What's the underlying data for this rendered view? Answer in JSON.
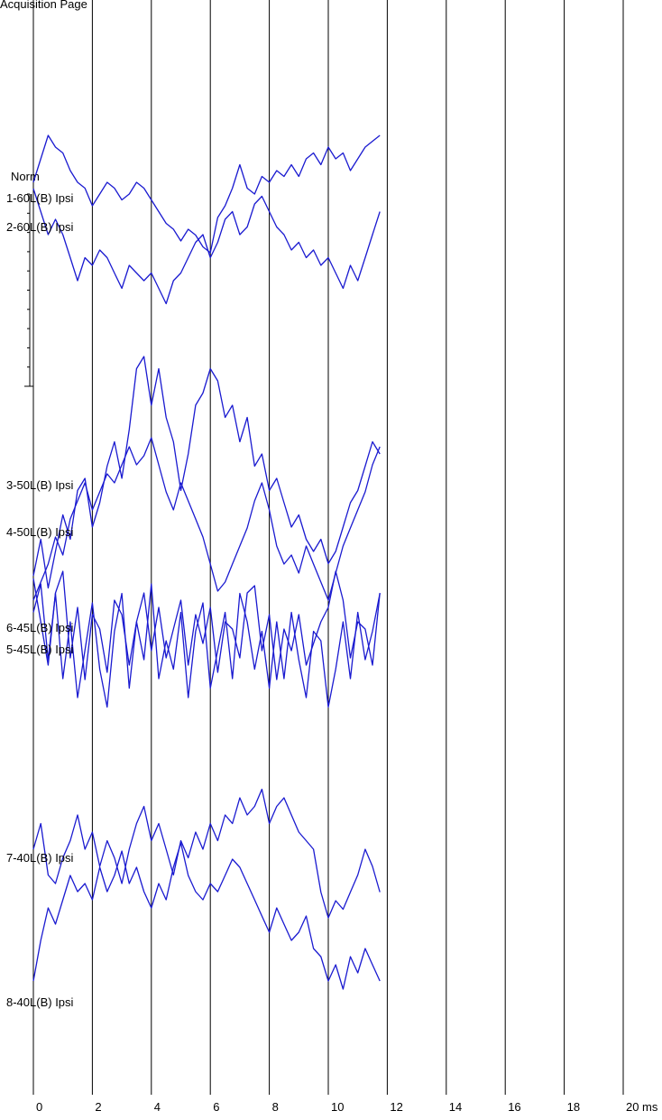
{
  "page_title": "Acquisition Page",
  "chart_data": {
    "type": "line",
    "title": "Acquisition Page",
    "xlabel": "",
    "x_unit": "ms",
    "xlim": [
      0,
      20
    ],
    "x_ticks": [
      0,
      2,
      4,
      6,
      8,
      10,
      12,
      14,
      16,
      18,
      20
    ],
    "grid": "vertical",
    "scale_label": "Norm",
    "series_color": "#1a1ad0",
    "series": [
      {
        "name": "1-60L(B) Ipsi",
        "x": [
          0,
          0.25,
          0.5,
          0.75,
          1,
          1.25,
          1.5,
          1.75,
          2,
          2.25,
          2.5,
          2.75,
          3,
          3.25,
          3.5,
          3.75,
          4,
          4.25,
          4.5,
          4.75,
          5,
          5.25,
          5.5,
          5.75,
          6,
          6.25,
          6.5,
          6.75,
          7,
          7.25,
          7.5,
          7.75,
          8,
          8.25,
          8.5,
          8.75,
          9,
          9.25,
          9.5,
          9.75,
          10,
          10.25,
          10.5,
          10.75,
          11,
          11.25,
          11.5,
          11.75
        ],
        "y": [
          0.2,
          0.6,
          1.0,
          0.8,
          0.7,
          0.4,
          0.2,
          0.1,
          -0.2,
          0.0,
          0.2,
          0.1,
          -0.1,
          0.0,
          0.2,
          0.1,
          -0.1,
          -0.3,
          -0.5,
          -0.6,
          -0.8,
          -0.6,
          -0.7,
          -0.9,
          -1.0,
          -0.4,
          -0.2,
          0.1,
          0.5,
          0.1,
          0.0,
          0.3,
          0.2,
          0.4,
          0.3,
          0.5,
          0.3,
          0.6,
          0.7,
          0.5,
          0.8,
          0.6,
          0.7,
          0.4,
          0.6,
          0.8,
          0.9,
          1.0
        ]
      },
      {
        "name": "2-60L(B) Ipsi",
        "x": [
          0,
          0.25,
          0.5,
          0.75,
          1,
          1.25,
          1.5,
          1.75,
          2,
          2.25,
          2.5,
          2.75,
          3,
          3.25,
          3.5,
          3.75,
          4,
          4.25,
          4.5,
          4.75,
          5,
          5.25,
          5.5,
          5.75,
          6,
          6.25,
          6.5,
          6.75,
          7,
          7.25,
          7.5,
          7.75,
          8,
          8.25,
          8.5,
          8.75,
          9,
          9.25,
          9.5,
          9.75,
          10,
          10.25,
          10.5,
          10.75,
          11,
          11.25,
          11.5,
          11.75
        ],
        "y": [
          0.6,
          0.3,
          0.0,
          0.2,
          0.0,
          -0.3,
          -0.6,
          -0.3,
          -0.4,
          -0.2,
          -0.3,
          -0.5,
          -0.7,
          -0.4,
          -0.5,
          -0.6,
          -0.5,
          -0.7,
          -0.9,
          -0.6,
          -0.5,
          -0.3,
          -0.1,
          0.0,
          -0.3,
          -0.1,
          0.2,
          0.3,
          0.0,
          0.1,
          0.4,
          0.5,
          0.3,
          0.1,
          0.0,
          -0.2,
          -0.1,
          -0.3,
          -0.2,
          -0.4,
          -0.3,
          -0.5,
          -0.7,
          -0.4,
          -0.6,
          -0.3,
          0.0,
          0.3
        ]
      },
      {
        "name": "3-50L(B) Ipsi",
        "x": [
          0,
          0.25,
          0.5,
          0.75,
          1,
          1.25,
          1.5,
          1.75,
          2,
          2.25,
          2.5,
          2.75,
          3,
          3.25,
          3.5,
          3.75,
          4,
          4.25,
          4.5,
          4.75,
          5,
          5.25,
          5.5,
          5.75,
          6,
          6.25,
          6.5,
          6.75,
          7,
          7.25,
          7.5,
          7.75,
          8,
          8.25,
          8.5,
          8.75,
          9,
          9.25,
          9.5,
          9.75,
          10,
          10.25,
          10.5,
          10.75,
          11,
          11.25,
          11.5,
          11.75
        ],
        "y": [
          -0.8,
          -0.5,
          -0.9,
          -0.6,
          -0.3,
          -0.5,
          -0.1,
          0.0,
          -0.4,
          -0.2,
          0.1,
          0.3,
          0.0,
          0.4,
          0.9,
          1.0,
          0.6,
          0.9,
          0.5,
          0.3,
          -0.1,
          0.2,
          0.6,
          0.7,
          0.9,
          0.8,
          0.5,
          0.6,
          0.3,
          0.5,
          0.1,
          0.2,
          -0.1,
          0.0,
          -0.2,
          -0.4,
          -0.3,
          -0.5,
          -0.6,
          -0.5,
          -0.7,
          -0.6,
          -0.4,
          -0.2,
          -0.1,
          0.1,
          0.3,
          0.2
        ]
      },
      {
        "name": "4-50L(B) Ipsi",
        "x": [
          0,
          0.25,
          0.5,
          0.75,
          1,
          1.25,
          1.5,
          1.75,
          2,
          2.25,
          2.5,
          2.75,
          3,
          3.25,
          3.5,
          3.75,
          4,
          4.25,
          4.5,
          4.75,
          5,
          5.25,
          5.5,
          5.75,
          6,
          6.25,
          6.5,
          6.75,
          7,
          7.25,
          7.5,
          7.75,
          8,
          8.25,
          8.5,
          8.75,
          9,
          9.25,
          9.5,
          9.75,
          10,
          10.25,
          10.5,
          10.75,
          11,
          11.25,
          11.5,
          11.75
        ],
        "y": [
          -0.9,
          -0.7,
          -0.5,
          -0.2,
          -0.4,
          0.0,
          0.2,
          0.4,
          0.1,
          0.3,
          0.5,
          0.4,
          0.6,
          0.8,
          0.6,
          0.7,
          0.9,
          0.6,
          0.3,
          0.1,
          0.4,
          0.2,
          0.0,
          -0.2,
          -0.5,
          -0.8,
          -0.7,
          -0.5,
          -0.3,
          -0.1,
          0.2,
          0.4,
          0.1,
          -0.3,
          -0.5,
          -0.4,
          -0.6,
          -0.3,
          -0.5,
          -0.7,
          -0.9,
          -0.6,
          -0.3,
          -0.1,
          0.1,
          0.3,
          0.6,
          0.8
        ]
      },
      {
        "name": "5-45L(B) Ipsi",
        "x": [
          0,
          0.25,
          0.5,
          0.75,
          1,
          1.25,
          1.5,
          1.75,
          2,
          2.25,
          2.5,
          2.75,
          3,
          3.25,
          3.5,
          3.75,
          4,
          4.25,
          4.5,
          4.75,
          5,
          5.25,
          5.5,
          5.75,
          6,
          6.25,
          6.5,
          6.75,
          7,
          7.25,
          7.5,
          7.75,
          8,
          8.25,
          8.5,
          8.75,
          9,
          9.25,
          9.5,
          9.75,
          10,
          10.25,
          10.5,
          10.75,
          11,
          11.25,
          11.5,
          11.75
        ],
        "y": [
          0.8,
          0.2,
          -0.4,
          0.6,
          0.9,
          -0.3,
          0.4,
          -0.6,
          0.3,
          0.1,
          -0.5,
          0.5,
          0.3,
          -0.4,
          0.2,
          0.6,
          -0.2,
          0.4,
          -0.3,
          0.1,
          0.5,
          -0.4,
          0.3,
          -0.1,
          0.4,
          -0.5,
          0.2,
          0.1,
          -0.3,
          0.6,
          0.7,
          -0.2,
          0.3,
          -0.6,
          0.1,
          -0.2,
          0.3,
          -0.4,
          -0.1,
          0.2,
          0.4,
          0.9,
          0.5,
          -0.3,
          0.2,
          0.1,
          -0.4,
          0.6
        ]
      },
      {
        "name": "6-45L(B) Ipsi",
        "x": [
          0,
          0.25,
          0.5,
          0.75,
          1,
          1.25,
          1.5,
          1.75,
          2,
          2.25,
          2.5,
          2.75,
          3,
          3.25,
          3.5,
          3.75,
          4,
          4.25,
          4.5,
          4.75,
          5,
          5.25,
          5.5,
          5.75,
          6,
          6.25,
          6.5,
          6.75,
          7,
          7.25,
          7.5,
          7.75,
          8,
          8.25,
          8.5,
          8.75,
          9,
          9.25,
          9.5,
          9.75,
          10,
          10.25,
          10.5,
          10.75,
          11,
          11.25,
          11.5,
          11.75
        ],
        "y": [
          0.3,
          0.6,
          -0.2,
          0.5,
          -0.4,
          0.2,
          -0.6,
          -0.1,
          0.4,
          -0.3,
          -0.7,
          0.1,
          0.5,
          -0.5,
          0.2,
          -0.2,
          0.6,
          -0.4,
          0.0,
          -0.3,
          0.3,
          -0.6,
          0.1,
          0.4,
          -0.5,
          -0.1,
          0.3,
          -0.4,
          0.5,
          0.2,
          -0.3,
          0.1,
          -0.5,
          0.2,
          -0.4,
          0.3,
          -0.2,
          -0.6,
          0.1,
          0.0,
          -0.7,
          -0.3,
          0.2,
          -0.4,
          0.3,
          -0.2,
          0.1,
          0.5
        ]
      },
      {
        "name": "7-40L(B) Ipsi",
        "x": [
          0,
          0.25,
          0.5,
          0.75,
          1,
          1.25,
          1.5,
          1.75,
          2,
          2.25,
          2.5,
          2.75,
          3,
          3.25,
          3.5,
          3.75,
          4,
          4.25,
          4.5,
          4.75,
          5,
          5.25,
          5.5,
          5.75,
          6,
          6.25,
          6.5,
          6.75,
          7,
          7.25,
          7.5,
          7.75,
          8,
          8.25,
          8.5,
          8.75,
          9,
          9.25,
          9.5,
          9.75,
          10,
          10.25,
          10.5,
          10.75,
          11,
          11.25,
          11.5,
          11.75
        ],
        "y": [
          0.2,
          0.5,
          -0.1,
          -0.2,
          0.1,
          0.3,
          0.6,
          0.2,
          0.4,
          0.0,
          0.3,
          0.1,
          -0.2,
          0.2,
          0.5,
          0.7,
          0.3,
          0.5,
          0.2,
          -0.1,
          0.3,
          0.1,
          0.4,
          0.2,
          0.5,
          0.3,
          0.6,
          0.5,
          0.8,
          0.6,
          0.7,
          0.9,
          0.5,
          0.7,
          0.8,
          0.6,
          0.4,
          0.3,
          0.2,
          -0.3,
          -0.6,
          -0.4,
          -0.5,
          -0.3,
          -0.1,
          0.2,
          0.0,
          -0.3
        ]
      },
      {
        "name": "8-40L(B) Ipsi",
        "x": [
          0,
          0.25,
          0.5,
          0.75,
          1,
          1.25,
          1.5,
          1.75,
          2,
          2.25,
          2.5,
          2.75,
          3,
          3.25,
          3.5,
          3.75,
          4,
          4.25,
          4.5,
          4.75,
          5,
          5.25,
          5.5,
          5.75,
          6,
          6.25,
          6.5,
          6.75,
          7,
          7.25,
          7.5,
          7.75,
          8,
          8.25,
          8.5,
          8.75,
          9,
          9.25,
          9.5,
          9.75,
          10,
          10.25,
          10.5,
          10.75,
          11,
          11.25,
          11.5,
          11.75
        ],
        "y": [
          -0.8,
          -0.3,
          0.1,
          -0.1,
          0.2,
          0.5,
          0.3,
          0.4,
          0.2,
          0.6,
          0.3,
          0.5,
          0.8,
          0.4,
          0.6,
          0.3,
          0.1,
          0.4,
          0.2,
          0.6,
          0.9,
          0.5,
          0.3,
          0.2,
          0.4,
          0.3,
          0.5,
          0.7,
          0.6,
          0.4,
          0.2,
          0.0,
          -0.2,
          0.1,
          -0.1,
          -0.3,
          -0.2,
          0.0,
          -0.4,
          -0.5,
          -0.8,
          -0.6,
          -0.9,
          -0.5,
          -0.7,
          -0.4,
          -0.6,
          -0.8
        ]
      }
    ]
  }
}
